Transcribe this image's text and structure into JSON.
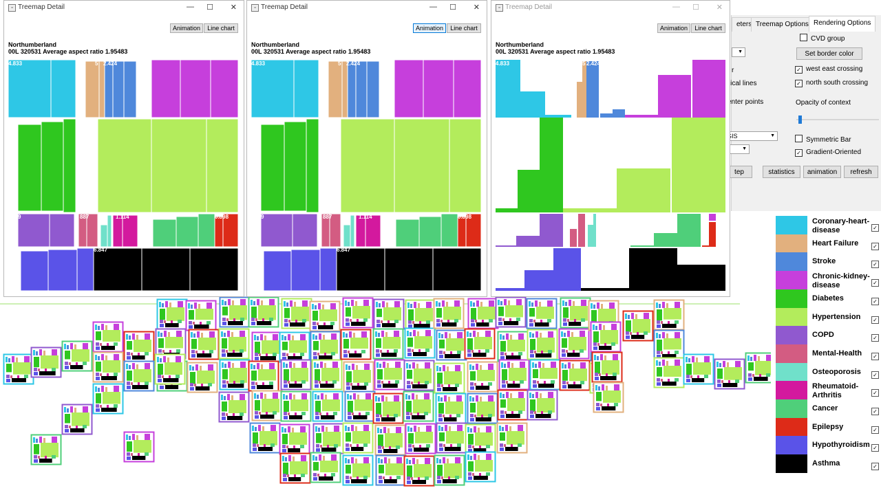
{
  "windows": [
    {
      "title": "Treemap Detail",
      "animation_label": "Animation",
      "linechart_label": "Line chart",
      "region": "Northumberland",
      "code": "00L",
      "count": "320531",
      "aspect_label": "Average aspect ratio",
      "aspect_value": "1.95483",
      "mode": "treemap",
      "active": true
    },
    {
      "title": "Treemap Detail",
      "animation_label": "Animation",
      "linechart_label": "Line chart",
      "region": "Northumberland",
      "code": "00L",
      "count": "320531",
      "aspect_label": "Average aspect ratio",
      "aspect_value": "1.95483",
      "mode": "treemap",
      "active": true
    },
    {
      "title": "Treemap Detail",
      "animation_label": "Animation",
      "linechart_label": "Line chart",
      "region": "Northumberland",
      "code": "00L",
      "count": "320531",
      "aspect_label": "Average aspect ratio",
      "aspect_value": "1.95483",
      "mode": "bars",
      "active": false
    }
  ],
  "value_labels": {
    "coronary": "4.833",
    "stroke": "2.424",
    "stroke_prefix": "5",
    "mental": "887",
    "copd": "9",
    "rheumatoid": "1.114",
    "epilepsy": "0.898",
    "asthma": "6.847"
  },
  "tabs": {
    "partial": "eters",
    "treemap": "Treemap Options",
    "rendering": "Rendering Options"
  },
  "controls": {
    "cvd_group": "CVD group",
    "set_border_color": "Set border color",
    "west_east": "west east crossing",
    "north_south": "north south crossing",
    "opacity_label": "Opacity of context",
    "opacity_value": 0.03,
    "symmetric_bar": "Symmetric Bar",
    "gradient_oriented": "Gradient-Oriented",
    "partial_r": "r",
    "partial_vertical": "rtical lines",
    "partial_center": "enter points",
    "partial_gis": "GIS",
    "step_btn": "tep",
    "statistics_btn": "statistics",
    "animation_btn": "animation",
    "refresh_btn": "refresh"
  },
  "legend": [
    {
      "label": "Coronary-heart-\ndisease",
      "color": "#2ec7e6"
    },
    {
      "label": "Heart Failure",
      "color": "#e2b07e"
    },
    {
      "label": "Stroke",
      "color": "#4f88db"
    },
    {
      "label": "Chronic-kidney-\ndisease",
      "color": "#c63fdc"
    },
    {
      "label": "Diabetes",
      "color": "#2fc71f"
    },
    {
      "label": "Hypertension",
      "color": "#b3ec5c"
    },
    {
      "label": "COPD",
      "color": "#9059cf"
    },
    {
      "label": "Mental-Health",
      "color": "#d35c82"
    },
    {
      "label": "Osteoporosis",
      "color": "#70e0ca"
    },
    {
      "label": "Rheumatoid-\nArthritis",
      "color": "#d3199e"
    },
    {
      "label": "Cancer",
      "color": "#4fcf7a"
    },
    {
      "label": "Epilepsy",
      "color": "#dd2b18"
    },
    {
      "label": "Hypothyroidism",
      "color": "#5a53e8"
    },
    {
      "label": "Asthma",
      "color": "#000000"
    }
  ]
}
